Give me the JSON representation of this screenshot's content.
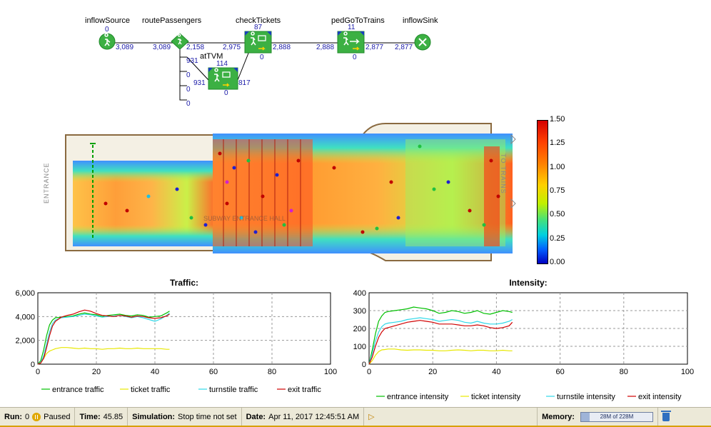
{
  "flowchart": {
    "blocks": [
      {
        "id": "inflowSource",
        "label": "inflowSource",
        "top": "0",
        "right": "3,089"
      },
      {
        "id": "routePassengers",
        "label": "routePassengers",
        "left": "3,089",
        "right": "2,158"
      },
      {
        "id": "checkTickets",
        "label": "checkTickets",
        "top": "87",
        "left": "2,975",
        "right": "2,888",
        "bottom": "0"
      },
      {
        "id": "pedGoToTrains",
        "label": "pedGoToTrains",
        "top": "11",
        "left": "2,888",
        "right": "2,877",
        "bottom": "0"
      },
      {
        "id": "inflowSink",
        "label": "inflowSink",
        "left": "2,877"
      },
      {
        "id": "atTVM",
        "label": "atTVM",
        "top": "114",
        "left": "931",
        "right": "817",
        "bottom": "0"
      }
    ],
    "branch_counts": [
      "931",
      "0",
      "0",
      "0"
    ]
  },
  "floor_plan": {
    "entrance_label": "ENTRANCE",
    "trains_label": "TO TRAINS",
    "area_label": "SUBWAY ENTRANCE HALL"
  },
  "colorbar": {
    "ticks": [
      "1.50",
      "1.25",
      "1.00",
      "0.75",
      "0.50",
      "0.25",
      "0.00"
    ],
    "colors": [
      "#d40000",
      "#ff4000",
      "#ff8000",
      "#ffd000",
      "#c0f000",
      "#40e080",
      "#00d0e0",
      "#0060ff",
      "#0000c0"
    ]
  },
  "chart_data": [
    {
      "type": "line",
      "title": "Traffic:",
      "xlabel": "",
      "ylabel": "",
      "xlim": [
        0,
        100
      ],
      "ylim": [
        0,
        6000
      ],
      "xticks": [
        "0",
        "20",
        "40",
        "60",
        "80",
        "100"
      ],
      "yticks": [
        "0",
        "2,000",
        "4,000",
        "6,000"
      ],
      "grid": true,
      "legend_position": "bottom",
      "series": [
        {
          "name": "entrance traffic",
          "color": "#00c000",
          "x": [
            0,
            1,
            2,
            3,
            4,
            5,
            6,
            8,
            10,
            12,
            14,
            16,
            18,
            20,
            22,
            24,
            26,
            28,
            30,
            32,
            34,
            36,
            38,
            40,
            42,
            44,
            45
          ],
          "y": [
            0,
            300,
            1200,
            2400,
            3300,
            3700,
            3900,
            3950,
            4000,
            4050,
            4200,
            4300,
            4200,
            4150,
            4000,
            4100,
            4150,
            4200,
            4100,
            4050,
            4150,
            4100,
            3950,
            4000,
            4050,
            4300,
            4450
          ]
        },
        {
          "name": "ticket traffic",
          "color": "#e8e800",
          "x": [
            0,
            1,
            2,
            3,
            4,
            5,
            6,
            8,
            10,
            12,
            14,
            16,
            18,
            20,
            22,
            24,
            26,
            28,
            30,
            32,
            34,
            36,
            38,
            40,
            42,
            44,
            45
          ],
          "y": [
            0,
            100,
            500,
            900,
            1100,
            1200,
            1300,
            1400,
            1400,
            1350,
            1300,
            1350,
            1300,
            1300,
            1250,
            1300,
            1300,
            1350,
            1300,
            1300,
            1350,
            1300,
            1300,
            1300,
            1300,
            1250,
            1250
          ]
        },
        {
          "name": "turnstile traffic",
          "color": "#30d8e8",
          "x": [
            0,
            1,
            2,
            3,
            4,
            5,
            6,
            8,
            10,
            12,
            14,
            16,
            18,
            20,
            22,
            24,
            26,
            28,
            30,
            32,
            34,
            36,
            38,
            40,
            42,
            44,
            45
          ],
          "y": [
            0,
            150,
            700,
            1700,
            2700,
            3400,
            3700,
            3900,
            3950,
            4000,
            4100,
            4200,
            4150,
            4050,
            3950,
            4000,
            4050,
            4100,
            4000,
            3900,
            4000,
            3900,
            3750,
            3600,
            3800,
            4100,
            4300
          ]
        },
        {
          "name": "exit traffic",
          "color": "#d00000",
          "x": [
            0,
            1,
            2,
            3,
            4,
            5,
            6,
            8,
            10,
            12,
            14,
            16,
            18,
            20,
            22,
            24,
            26,
            28,
            30,
            32,
            34,
            36,
            38,
            40,
            42,
            44,
            45
          ],
          "y": [
            0,
            100,
            500,
            1400,
            2400,
            3200,
            3600,
            3950,
            4100,
            4200,
            4400,
            4550,
            4450,
            4250,
            4100,
            4050,
            4000,
            4100,
            4050,
            3950,
            4050,
            4000,
            3900,
            3850,
            3900,
            4050,
            4200
          ]
        }
      ]
    },
    {
      "type": "line",
      "title": "Intensity:",
      "xlabel": "",
      "ylabel": "",
      "xlim": [
        0,
        100
      ],
      "ylim": [
        0,
        400
      ],
      "xticks": [
        "0",
        "20",
        "40",
        "60",
        "80",
        "100"
      ],
      "yticks": [
        "0",
        "100",
        "200",
        "300",
        "400"
      ],
      "grid": true,
      "legend_position": "bottom",
      "series": [
        {
          "name": "entrance intensity",
          "color": "#00c000",
          "x": [
            0,
            1,
            2,
            3,
            4,
            5,
            6,
            8,
            10,
            12,
            14,
            16,
            18,
            20,
            22,
            24,
            26,
            28,
            30,
            32,
            34,
            36,
            38,
            40,
            42,
            44,
            45
          ],
          "y": [
            0,
            80,
            170,
            240,
            270,
            290,
            295,
            300,
            305,
            310,
            320,
            315,
            310,
            300,
            285,
            290,
            300,
            295,
            285,
            290,
            300,
            285,
            280,
            290,
            300,
            295,
            290
          ]
        },
        {
          "name": "ticket intensity",
          "color": "#e8e800",
          "x": [
            0,
            1,
            2,
            3,
            4,
            5,
            6,
            8,
            10,
            12,
            14,
            16,
            18,
            20,
            22,
            24,
            26,
            28,
            30,
            32,
            34,
            36,
            38,
            40,
            42,
            44,
            45
          ],
          "y": [
            0,
            20,
            50,
            70,
            80,
            82,
            85,
            85,
            80,
            78,
            80,
            80,
            78,
            78,
            75,
            75,
            78,
            80,
            78,
            75,
            78,
            78,
            75,
            75,
            78,
            75,
            75
          ]
        },
        {
          "name": "turnstile intensity",
          "color": "#30d8e8",
          "x": [
            0,
            1,
            2,
            3,
            4,
            5,
            6,
            8,
            10,
            12,
            14,
            16,
            18,
            20,
            22,
            24,
            26,
            28,
            30,
            32,
            34,
            36,
            38,
            40,
            42,
            44,
            45
          ],
          "y": [
            0,
            60,
            130,
            180,
            210,
            225,
            230,
            235,
            240,
            250,
            255,
            260,
            255,
            250,
            240,
            245,
            250,
            245,
            235,
            230,
            240,
            230,
            225,
            225,
            230,
            240,
            250
          ]
        },
        {
          "name": "exit intensity",
          "color": "#d00000",
          "x": [
            0,
            1,
            2,
            3,
            4,
            5,
            6,
            8,
            10,
            12,
            14,
            16,
            18,
            20,
            22,
            24,
            26,
            28,
            30,
            32,
            34,
            36,
            38,
            40,
            42,
            44,
            45
          ],
          "y": [
            0,
            40,
            100,
            150,
            180,
            200,
            205,
            215,
            225,
            235,
            240,
            245,
            240,
            235,
            225,
            225,
            225,
            220,
            215,
            215,
            220,
            215,
            205,
            200,
            205,
            215,
            235
          ]
        }
      ]
    }
  ],
  "statusbar": {
    "run_label": "Run:",
    "run_value": "0",
    "state": "Paused",
    "time_label": "Time:",
    "time_value": "45.85",
    "sim_label": "Simulation:",
    "sim_value": "Stop time not set",
    "date_label": "Date:",
    "date_value": "Apr 11, 2017 12:45:51 AM",
    "memory_label": "Memory:",
    "memory_value": "28M of 228M",
    "memory_fraction": 0.123
  }
}
